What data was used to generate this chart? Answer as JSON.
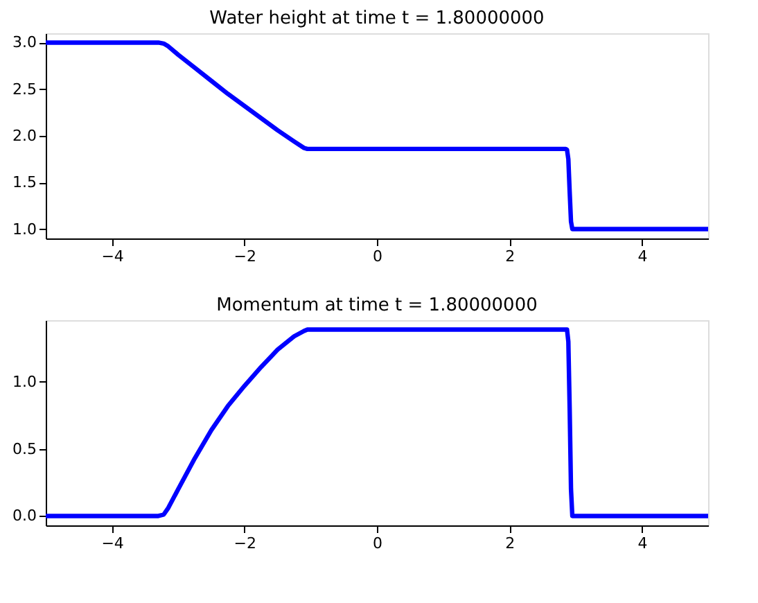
{
  "chart_data": [
    {
      "type": "line",
      "title": "Water height at time t =     1.80000000",
      "x": [
        -5,
        -3.3,
        -3.22,
        -3.15,
        -3.0,
        -2.75,
        -2.5,
        -2.25,
        -2.0,
        -1.75,
        -1.5,
        -1.25,
        -1.1,
        -1.05,
        0,
        2.85,
        2.87,
        2.89,
        2.91,
        2.93,
        2.95,
        5
      ],
      "series": [
        {
          "color": "#0000ff",
          "values": [
            3.0,
            3.0,
            2.99,
            2.96,
            2.87,
            2.73,
            2.59,
            2.45,
            2.32,
            2.19,
            2.06,
            1.94,
            1.87,
            1.86,
            1.86,
            1.86,
            1.85,
            1.75,
            1.4,
            1.08,
            1.0,
            1.0
          ]
        }
      ],
      "xlim": [
        -5,
        5
      ],
      "ylim": [
        0.9,
        3.1
      ],
      "xticks": [
        -4,
        -2,
        0,
        2,
        4
      ],
      "yticks": [
        {
          "value": 1,
          "label": "1.0"
        },
        1.5,
        {
          "value": 2,
          "label": "2.0"
        },
        2.5,
        {
          "value": 3,
          "label": "3.0"
        }
      ],
      "grid": false
    },
    {
      "type": "line",
      "title": "Momentum at time t =     1.80000000",
      "x": [
        -5,
        -3.3,
        -3.22,
        -3.15,
        -3.0,
        -2.75,
        -2.5,
        -2.25,
        -2.0,
        -1.75,
        -1.5,
        -1.25,
        -1.1,
        -1.05,
        0,
        2.85,
        2.87,
        2.89,
        2.91,
        2.93,
        2.95,
        5
      ],
      "series": [
        {
          "color": "#0000ff",
          "values": [
            0.0,
            0.0,
            0.01,
            0.06,
            0.2,
            0.43,
            0.64,
            0.82,
            0.97,
            1.11,
            1.24,
            1.34,
            1.38,
            1.39,
            1.39,
            1.39,
            1.39,
            1.3,
            0.8,
            0.2,
            0.0,
            0.0
          ]
        }
      ],
      "xlim": [
        -5,
        5
      ],
      "ylim": [
        -0.07,
        1.46
      ],
      "xticks": [
        -4,
        -2,
        0,
        2,
        4
      ],
      "yticks": [
        {
          "value": 0,
          "label": "0.0"
        },
        0.5,
        {
          "value": 1,
          "label": "1.0"
        }
      ],
      "grid": false
    }
  ]
}
